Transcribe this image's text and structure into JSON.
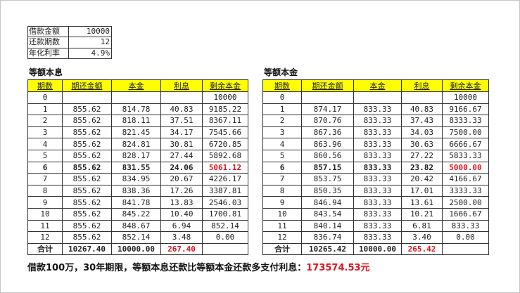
{
  "info": [
    [
      "借款金额",
      "10000"
    ],
    [
      "还款期数",
      "12"
    ],
    [
      "年化利率",
      "4.9%"
    ]
  ],
  "headers": [
    "期数",
    "期还金额",
    "本金",
    "利息",
    "剩余本金"
  ],
  "tables": [
    {
      "title": "等额本息",
      "rows": [
        [
          "0",
          "",
          "",
          "",
          "10000"
        ],
        [
          "1",
          "855.62",
          "814.78",
          "40.83",
          "9185.22"
        ],
        [
          "2",
          "855.62",
          "818.11",
          "37.51",
          "8367.11"
        ],
        [
          "3",
          "855.62",
          "821.45",
          "34.17",
          "7545.66"
        ],
        [
          "4",
          "855.62",
          "824.81",
          "30.81",
          "6720.85"
        ],
        [
          "5",
          "855.62",
          "828.17",
          "27.44",
          "5892.68"
        ],
        [
          "6",
          "855.62",
          "831.55",
          "24.06",
          "5061.12"
        ],
        [
          "7",
          "855.62",
          "834.95",
          "20.67",
          "4226.17"
        ],
        [
          "8",
          "855.62",
          "838.36",
          "17.26",
          "3387.81"
        ],
        [
          "9",
          "855.62",
          "841.78",
          "13.83",
          "2546.03"
        ],
        [
          "10",
          "855.62",
          "845.22",
          "10.40",
          "1700.81"
        ],
        [
          "11",
          "855.62",
          "848.67",
          "6.94",
          "852.14"
        ],
        [
          "12",
          "855.62",
          "852.14",
          "3.48",
          "0.00"
        ]
      ],
      "total": [
        "合计",
        "10267.40",
        "10000.00",
        "267.40",
        ""
      ]
    },
    {
      "title": "等额本金",
      "rows": [
        [
          "0",
          "",
          "",
          "",
          "10000"
        ],
        [
          "1",
          "874.17",
          "833.33",
          "40.83",
          "9166.67"
        ],
        [
          "2",
          "870.76",
          "833.33",
          "37.43",
          "8333.33"
        ],
        [
          "3",
          "867.36",
          "833.33",
          "34.03",
          "7500.00"
        ],
        [
          "4",
          "863.96",
          "833.33",
          "30.63",
          "6666.67"
        ],
        [
          "5",
          "860.56",
          "833.33",
          "27.22",
          "5833.33"
        ],
        [
          "6",
          "857.15",
          "833.33",
          "23.82",
          "5000.00"
        ],
        [
          "7",
          "853.75",
          "833.33",
          "20.42",
          "4166.67"
        ],
        [
          "8",
          "850.35",
          "833.33",
          "17.01",
          "3333.33"
        ],
        [
          "9",
          "846.94",
          "833.33",
          "13.61",
          "2500.00"
        ],
        [
          "10",
          "843.54",
          "833.33",
          "10.21",
          "1666.67"
        ],
        [
          "11",
          "840.14",
          "833.33",
          "6.81",
          "833.33"
        ],
        [
          "12",
          "836.74",
          "833.33",
          "3.40",
          "0.00"
        ]
      ],
      "total": [
        "合计",
        "10265.42",
        "10000.00",
        "265.42",
        ""
      ]
    }
  ],
  "footer": {
    "text": "借款100万，30年期限，等额本息还款比等额本金还款多支付利息：",
    "amount": "173574.53元"
  },
  "colors": {
    "header_bg": "#ffff00",
    "highlight": "#e0141e"
  }
}
